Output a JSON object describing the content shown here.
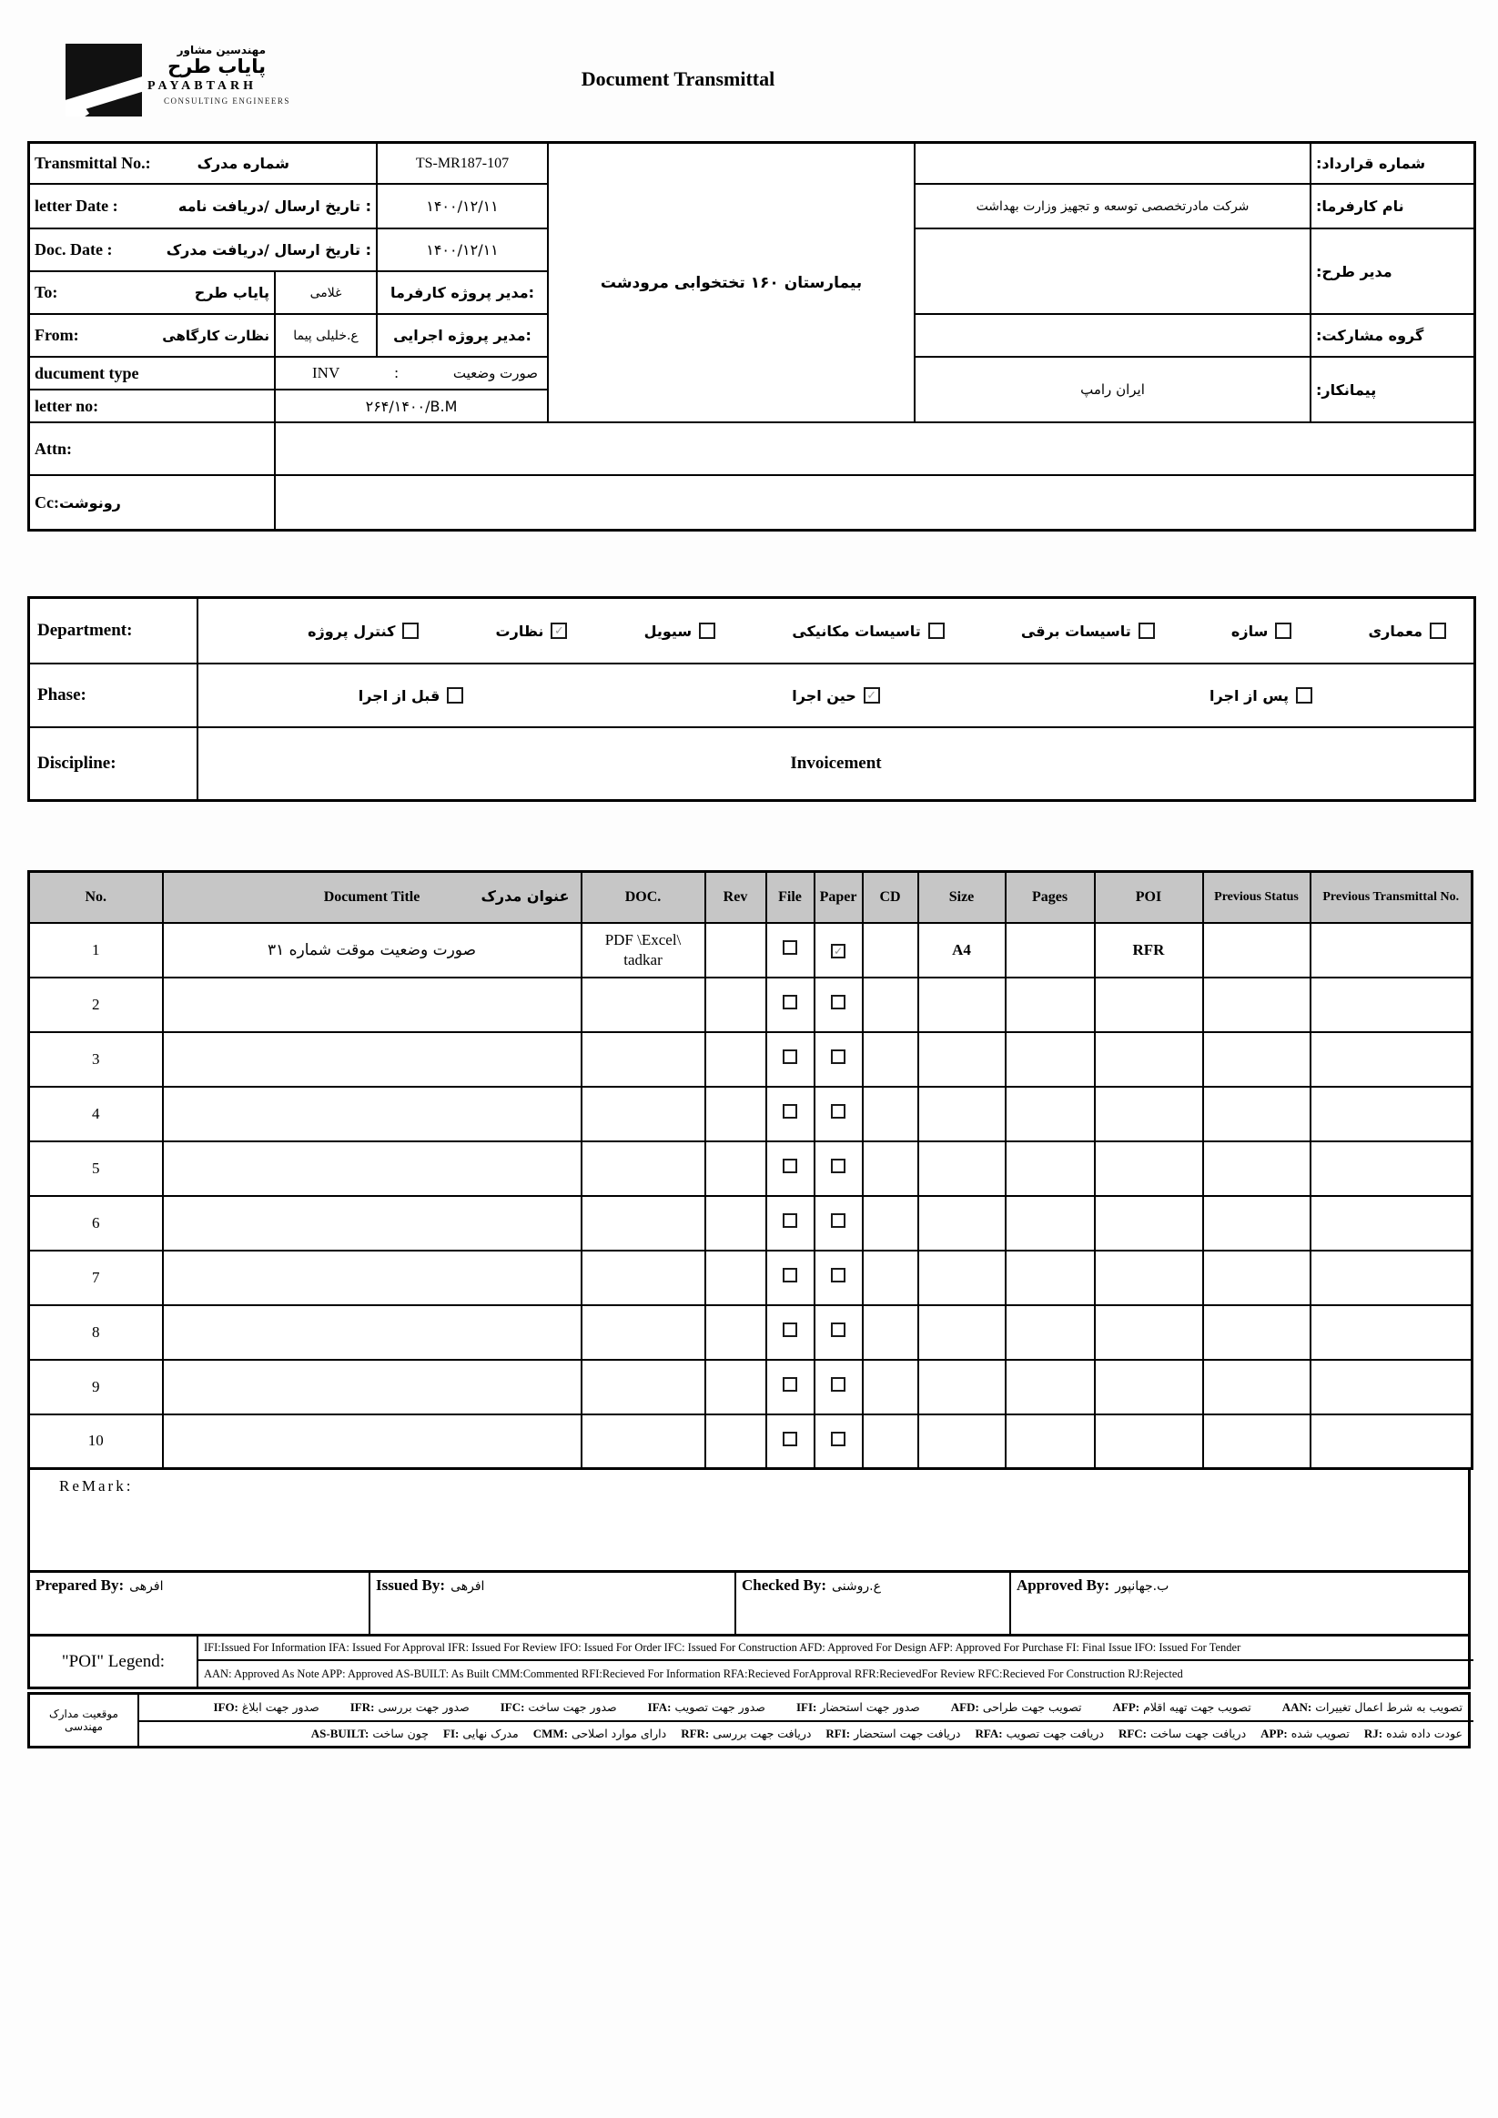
{
  "brand": {
    "fa_tagline": "مهندسین مشاور",
    "fa_name": "پایاب طرح",
    "en_name": "PAYABTARH",
    "en_sub": "CONSULTING ENGINEERS"
  },
  "title": "Document Transmittal",
  "top": {
    "transmittal_label_en": "Transmittal No.:",
    "transmittal_label_fa": "شماره مدرک",
    "transmittal_no": "TS-MR187-107",
    "letter_date_label_en": "letter Date :",
    "letter_date_label_fa": "تاریخ ارسال /دریافت نامه :",
    "letter_date": "۱۴۰۰/۱۲/۱۱",
    "doc_date_label_en": "Doc. Date :",
    "doc_date_label_fa": "تاریخ ارسال /دریافت مدرک :",
    "doc_date": "۱۴۰۰/۱۲/۱۱",
    "to_label": "To:",
    "to_value": "پایاب طرح",
    "to_person": "غلامی",
    "to_role": "مدیر پروژه کارفرما:",
    "from_label": "From:",
    "from_value": "نظارت کارگاهی",
    "from_person": "ع.خلیلی پیما",
    "from_role": "مدیر پروژه اجرایی:",
    "doc_type_label": "ducument type",
    "doc_type_code": "INV",
    "doc_type_colon": ":",
    "doc_type_fa": "صورت وضعیت",
    "letter_no_label": "letter no:",
    "letter_no": "۲۶۴/۱۴۰۰/B.M",
    "attn_label": "Attn:",
    "attn_value": "",
    "cc_label": "Cc:",
    "cc_label_fa": "رونوشت",
    "cc_value": "",
    "project_name": "بیمارستان ۱۶۰ تختخوابی مرودشت",
    "contract_no_label": "شماره قرارداد:",
    "contract_no": "",
    "client_label": "نام کارفرما:",
    "client": "شرکت مادرتخصصی توسعه و تجهیز وزارت بهداشت",
    "design_manager_label": "مدیر طرح:",
    "design_manager": "",
    "jv_label": "گروه مشارکت:",
    "jv": "",
    "contractor_label": "پیمانکار:",
    "contractor": "ایران رامپ"
  },
  "dept": {
    "department_label": "Department:",
    "department_items": [
      {
        "label": "معماری",
        "checked": false
      },
      {
        "label": "سازه",
        "checked": false
      },
      {
        "label": "تاسیسات برقی",
        "checked": false
      },
      {
        "label": "تاسیسات مکانیکی",
        "checked": false
      },
      {
        "label": "سیویل",
        "checked": false
      },
      {
        "label": "نظارت",
        "checked": true
      },
      {
        "label": "کنترل پروژه",
        "checked": false
      }
    ],
    "phase_label": "Phase:",
    "phase_items": [
      {
        "label": "پس از اجرا",
        "checked": false
      },
      {
        "label": "حین اجرا",
        "checked": true
      },
      {
        "label": "قبل از اجرا",
        "checked": false
      }
    ],
    "discipline_label": "Discipline:",
    "discipline_value": "Invoicement"
  },
  "doc_table": {
    "headers": {
      "no": "No.",
      "title_en": "Document Title",
      "title_fa": "عنوان مدرک",
      "doc": "DOC.",
      "rev": "Rev",
      "file": "File",
      "paper": "Paper",
      "cd": "CD",
      "size": "Size",
      "pages": "Pages",
      "poi": "POI",
      "prev_status": "Previous Status",
      "prev_transmittal": "Previous Transmittal No."
    },
    "rows": [
      {
        "no": "1",
        "title": "صورت وضعیت موقت شماره ۳۱",
        "doc_line1": "PDF \\Excel\\",
        "doc_line2": "tadkar",
        "rev": "",
        "file_checked": false,
        "paper_checked": true,
        "cd": "",
        "size": "A4",
        "pages": "",
        "poi": "RFR",
        "prev_status": "",
        "prev_transmittal": ""
      },
      {
        "no": "2",
        "title": "",
        "doc_line1": "",
        "doc_line2": "",
        "rev": "",
        "file_checked": false,
        "paper_checked": false,
        "cd": "",
        "size": "",
        "pages": "",
        "poi": "",
        "prev_status": "",
        "prev_transmittal": ""
      },
      {
        "no": "3",
        "title": "",
        "doc_line1": "",
        "doc_line2": "",
        "rev": "",
        "file_checked": false,
        "paper_checked": false,
        "cd": "",
        "size": "",
        "pages": "",
        "poi": "",
        "prev_status": "",
        "prev_transmittal": ""
      },
      {
        "no": "4",
        "title": "",
        "doc_line1": "",
        "doc_line2": "",
        "rev": "",
        "file_checked": false,
        "paper_checked": false,
        "cd": "",
        "size": "",
        "pages": "",
        "poi": "",
        "prev_status": "",
        "prev_transmittal": ""
      },
      {
        "no": "5",
        "title": "",
        "doc_line1": "",
        "doc_line2": "",
        "rev": "",
        "file_checked": false,
        "paper_checked": false,
        "cd": "",
        "size": "",
        "pages": "",
        "poi": "",
        "prev_status": "",
        "prev_transmittal": ""
      },
      {
        "no": "6",
        "title": "",
        "doc_line1": "",
        "doc_line2": "",
        "rev": "",
        "file_checked": false,
        "paper_checked": false,
        "cd": "",
        "size": "",
        "pages": "",
        "poi": "",
        "prev_status": "",
        "prev_transmittal": ""
      },
      {
        "no": "7",
        "title": "",
        "doc_line1": "",
        "doc_line2": "",
        "rev": "",
        "file_checked": false,
        "paper_checked": false,
        "cd": "",
        "size": "",
        "pages": "",
        "poi": "",
        "prev_status": "",
        "prev_transmittal": ""
      },
      {
        "no": "8",
        "title": "",
        "doc_line1": "",
        "doc_line2": "",
        "rev": "",
        "file_checked": false,
        "paper_checked": false,
        "cd": "",
        "size": "",
        "pages": "",
        "poi": "",
        "prev_status": "",
        "prev_transmittal": ""
      },
      {
        "no": "9",
        "title": "",
        "doc_line1": "",
        "doc_line2": "",
        "rev": "",
        "file_checked": false,
        "paper_checked": false,
        "cd": "",
        "size": "",
        "pages": "",
        "poi": "",
        "prev_status": "",
        "prev_transmittal": ""
      },
      {
        "no": "10",
        "title": "",
        "doc_line1": "",
        "doc_line2": "",
        "rev": "",
        "file_checked": false,
        "paper_checked": false,
        "cd": "",
        "size": "",
        "pages": "",
        "poi": "",
        "prev_status": "",
        "prev_transmittal": ""
      }
    ]
  },
  "remark_label": "ReMark:",
  "signatures": {
    "prepared_label": "Prepared By:",
    "prepared": "افرهی",
    "issued_label": "Issued By:",
    "issued": "افرهی",
    "checked_label": "Checked By:",
    "checked": "ع.روشنی",
    "approved_label": "Approved By:",
    "approved": "ب.جهانپور"
  },
  "poi_legend": {
    "label": "\"POI\" Legend:",
    "line1": "IFI:Issued For Information  IFA: Issued For Approval  IFR: Issued For Review   IFO: Issued For Order  IFC: Issued For Construction AFD: Approved For Design AFP: Approved For Purchase  FI: Final Issue  IFO: Issued For Tender",
    "line2": "AAN: Approved As Note  APP: Approved  AS-BUILT: As Built CMM:Commented  RFI:Recieved For Information  RFA:Recieved ForApproval   RFR:RecievedFor Review  RFC:Recieved For Construction  RJ:Rejected"
  },
  "fa_legend": {
    "label": "موقعیت مدارک مهندسی",
    "line1": [
      {
        "code": "AAN",
        "text": "تصویب به شرط اعمال تغییرات"
      },
      {
        "code": "AFP",
        "text": "تصویب جهت تهیه اقلام"
      },
      {
        "code": "AFD",
        "text": "تصویب جهت طراحی"
      },
      {
        "code": "IFI",
        "text": "صدور جهت استحضار"
      },
      {
        "code": "IFA",
        "text": "صدور جهت تصویب"
      },
      {
        "code": "IFC",
        "text": "صدور جهت ساخت"
      },
      {
        "code": "IFR",
        "text": "صدور جهت بررسی"
      },
      {
        "code": "IFO",
        "text": "صدور جهت ابلاغ"
      }
    ],
    "line2": [
      {
        "code": "RJ",
        "text": "عودت داده شده"
      },
      {
        "code": "APP",
        "text": "تصویب شده"
      },
      {
        "code": "RFC",
        "text": "دریافت جهت ساخت"
      },
      {
        "code": "RFA",
        "text": "دریافت جهت تصویب"
      },
      {
        "code": "RFI",
        "text": "دریافت جهت استحضار"
      },
      {
        "code": "RFR",
        "text": "دریافت جهت بررسی"
      },
      {
        "code": "CMM",
        "text": "دارای موارد اصلاحی"
      },
      {
        "code": "FI",
        "text": "مدرک نهایی"
      },
      {
        "code": "AS-BUILT",
        "text": "چون ساخت"
      }
    ]
  }
}
